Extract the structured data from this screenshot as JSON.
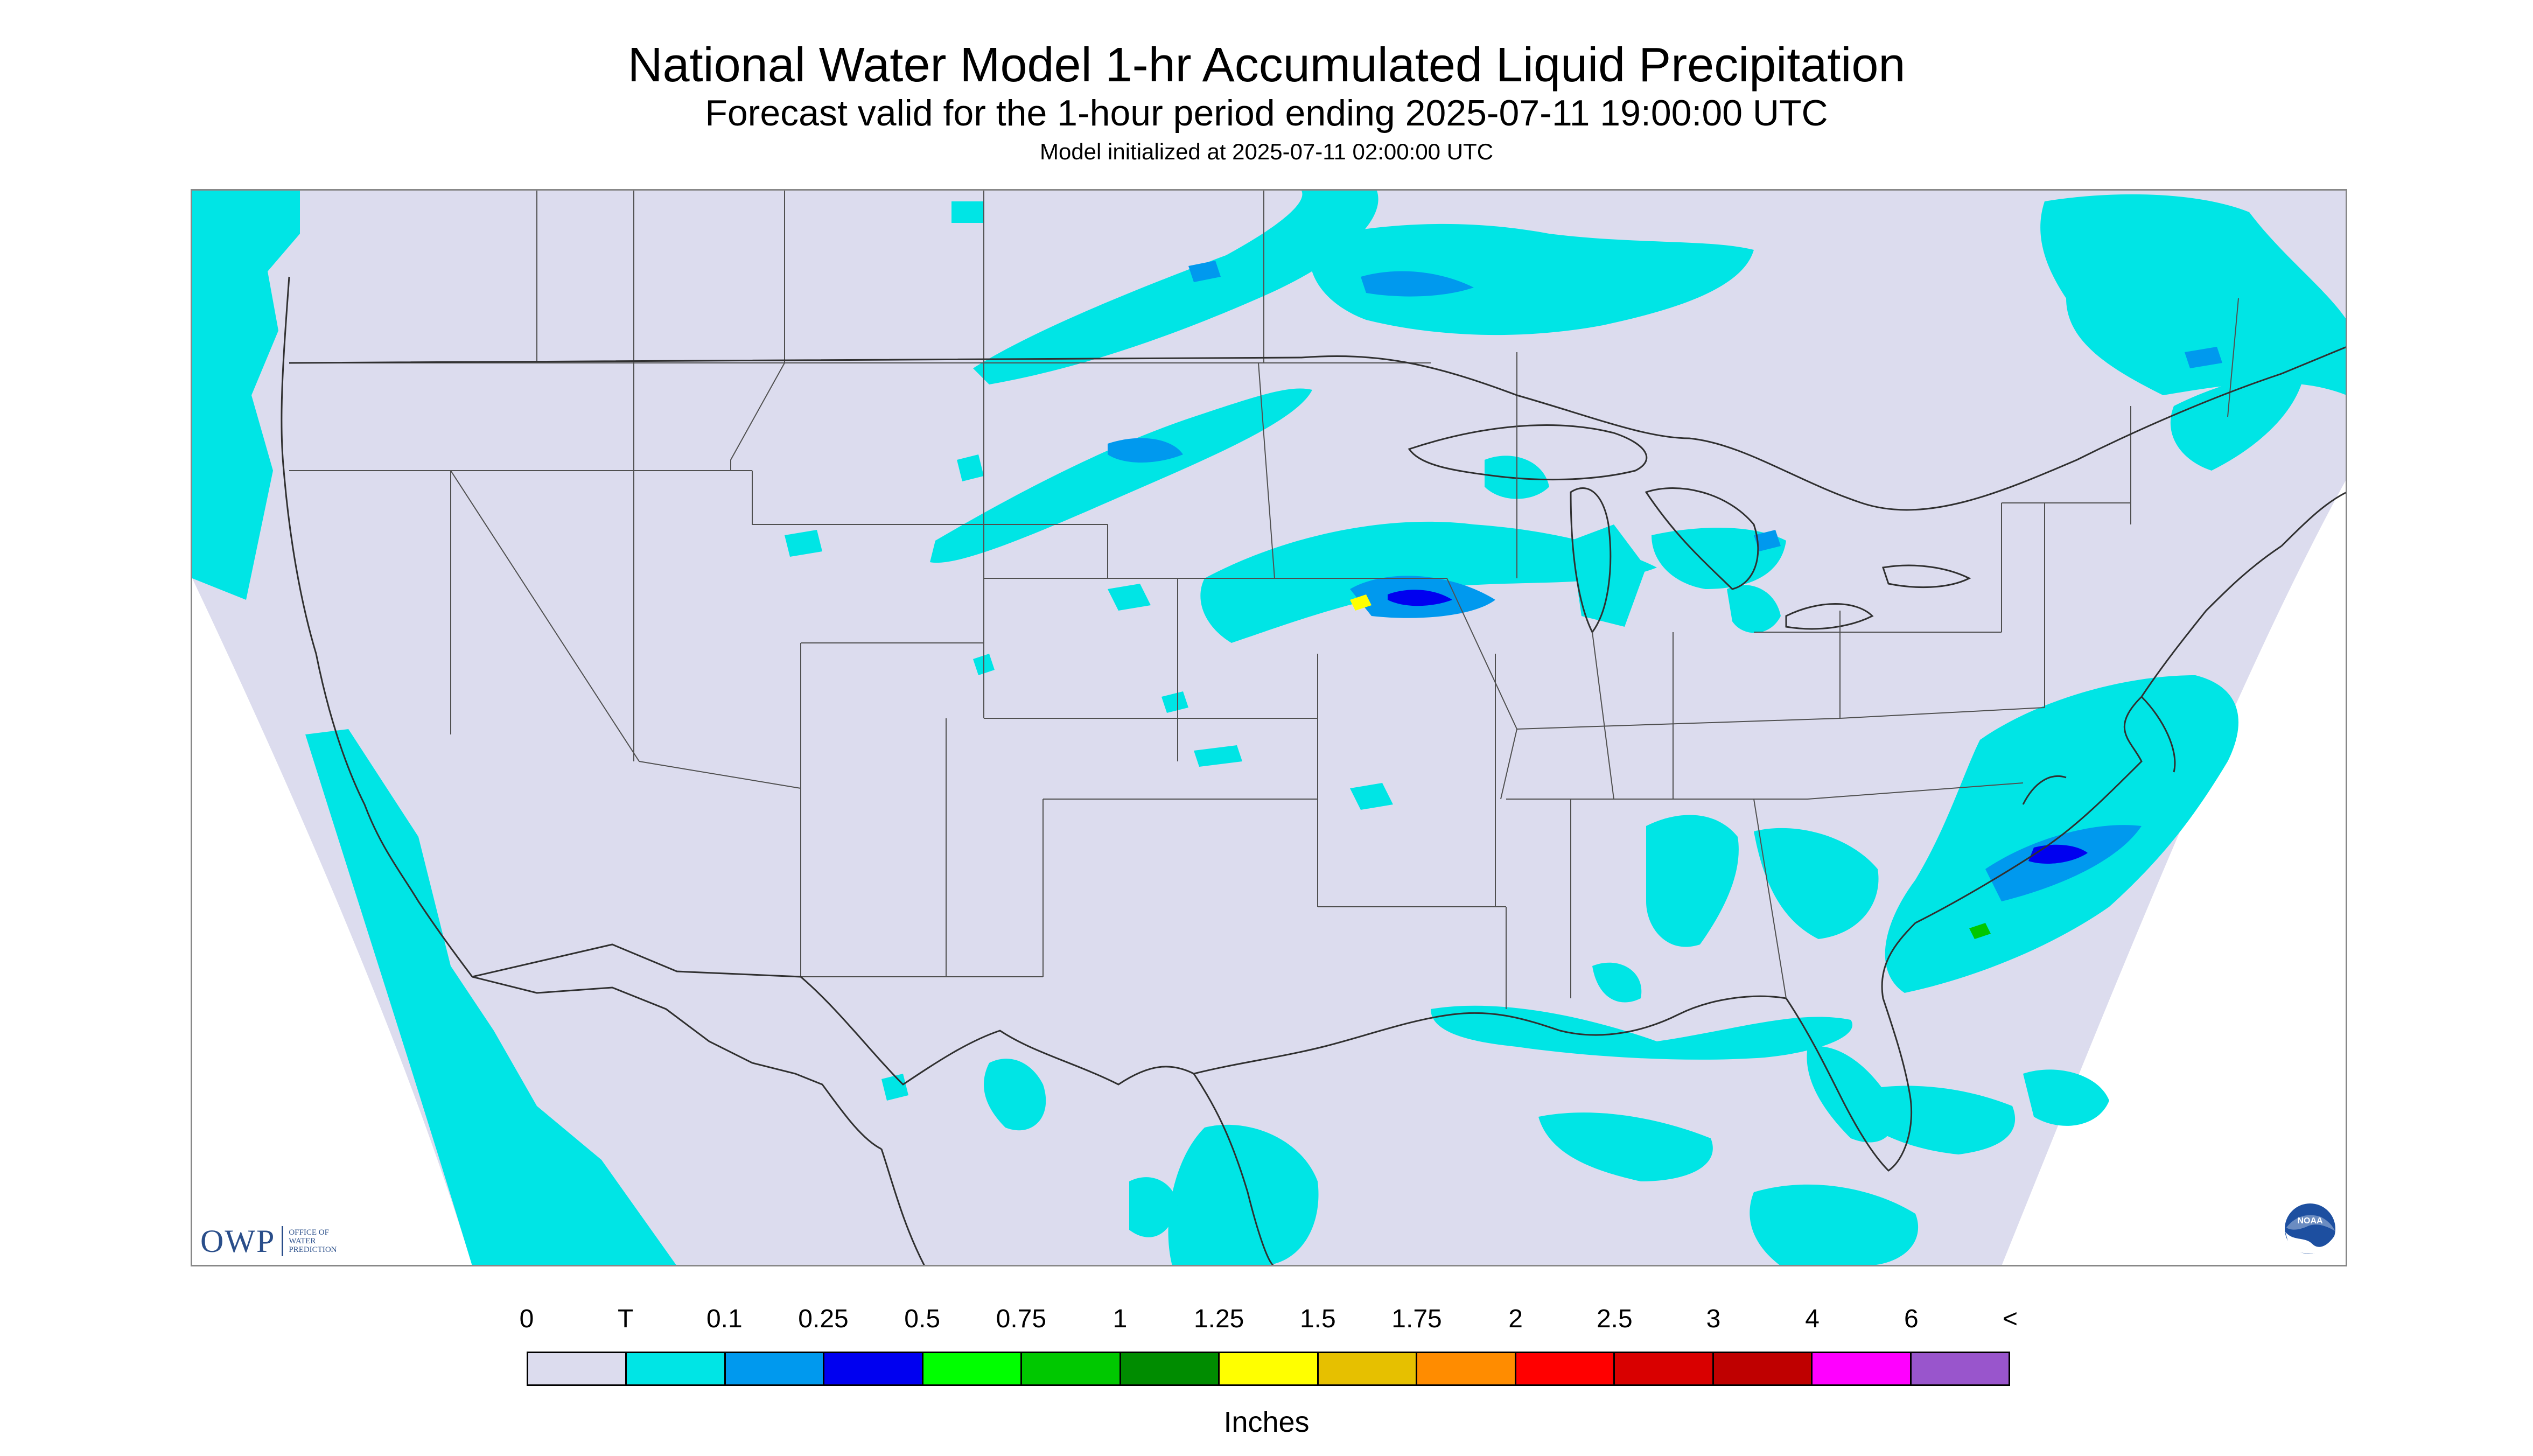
{
  "header": {
    "title": "National Water Model 1-hr Accumulated Liquid Precipitation",
    "subtitle": "Forecast valid for the 1-hour period ending 2025-07-11 19:00:00 UTC",
    "init": "Model initialized at 2025-07-11 02:00:00 UTC"
  },
  "map": {
    "region": "Continental United States",
    "background_color": "#dcdcee",
    "line_color": "#404040",
    "precip_color_trace": "#00e5e5"
  },
  "legend": {
    "labels": [
      "0",
      "T",
      "0.1",
      "0.25",
      "0.5",
      "0.75",
      "1",
      "1.25",
      "1.5",
      "1.75",
      "2",
      "2.5",
      "3",
      "4",
      "6",
      "<"
    ],
    "colors": [
      "#dcdcee",
      "#00e5e5",
      "#0099ee",
      "#0000f0",
      "#00ff00",
      "#00c800",
      "#008c00",
      "#ffff00",
      "#e6c000",
      "#ff8c00",
      "#ff0000",
      "#d90000",
      "#bf0000",
      "#ff00ff",
      "#9955cc"
    ],
    "units": "Inches"
  },
  "logos": {
    "owp_text": "OWP",
    "owp_sub": "OFFICE OF\nWATER\nPREDICTION",
    "noaa_text": "NOAA"
  }
}
